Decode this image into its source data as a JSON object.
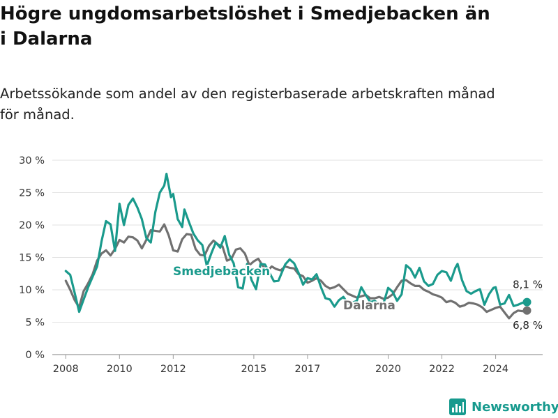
{
  "title_lines": [
    "Högre ungdomsarbetslöshet i Smedjebacken än",
    "i Dalarna"
  ],
  "subtitle_lines": [
    "Arbetssökande som andel av den registerbaserade arbetskraften månad",
    "för månad."
  ],
  "brand": {
    "name": "Newsworthy",
    "icon": "bar-chart-logo-icon",
    "color": "#179a8e"
  },
  "chart_data": {
    "type": "line",
    "xlabel": "",
    "ylabel": "",
    "x_ticks": [
      "2008",
      "2010",
      "2012",
      "2015",
      "2017",
      "2020",
      "2022",
      "2024"
    ],
    "y_ticks": [
      "0 %",
      "5 %",
      "10 %",
      "15 %",
      "20 %",
      "25 %",
      "30 %"
    ],
    "ylim": [
      0,
      30
    ],
    "xlim": [
      "2007-07",
      "2025-10"
    ],
    "grid": true,
    "legend": "none (series labelled directly on the lines)",
    "series": [
      {
        "name": "Smedjebacken",
        "color": "#1a9a8c",
        "end_label": "8,1 %",
        "points": [
          [
            "2008-01",
            12.9
          ],
          [
            "2008-03",
            12.3
          ],
          [
            "2008-05",
            9.5
          ],
          [
            "2008-07",
            6.6
          ],
          [
            "2008-09",
            8.5
          ],
          [
            "2008-11",
            10.4
          ],
          [
            "2009-01",
            12.0
          ],
          [
            "2009-03",
            13.6
          ],
          [
            "2009-05",
            17.5
          ],
          [
            "2009-07",
            20.6
          ],
          [
            "2009-09",
            20.1
          ],
          [
            "2009-11",
            16.0
          ],
          [
            "2010-01",
            23.3
          ],
          [
            "2010-03",
            20.0
          ],
          [
            "2010-05",
            23.1
          ],
          [
            "2010-07",
            24.1
          ],
          [
            "2010-09",
            22.7
          ],
          [
            "2010-11",
            20.9
          ],
          [
            "2011-01",
            18.0
          ],
          [
            "2011-03",
            17.3
          ],
          [
            "2011-05",
            22.0
          ],
          [
            "2011-07",
            25.0
          ],
          [
            "2011-09",
            26.1
          ],
          [
            "2011-10",
            27.9
          ],
          [
            "2011-12",
            24.3
          ],
          [
            "2012-01",
            24.8
          ],
          [
            "2012-03",
            20.9
          ],
          [
            "2012-05",
            19.7
          ],
          [
            "2012-06",
            22.4
          ],
          [
            "2012-08",
            20.5
          ],
          [
            "2012-10",
            18.7
          ],
          [
            "2012-12",
            17.6
          ],
          [
            "2013-02",
            16.9
          ],
          [
            "2013-04",
            13.7
          ],
          [
            "2013-06",
            15.6
          ],
          [
            "2013-08",
            17.3
          ],
          [
            "2013-10",
            16.5
          ],
          [
            "2013-12",
            18.3
          ],
          [
            "2014-02",
            15.4
          ],
          [
            "2014-04",
            14.1
          ],
          [
            "2014-06",
            10.4
          ],
          [
            "2014-08",
            10.2
          ],
          [
            "2014-10",
            14.0
          ],
          [
            "2014-12",
            11.5
          ],
          [
            "2015-02",
            10.1
          ],
          [
            "2015-04",
            14.0
          ],
          [
            "2015-06",
            13.9
          ],
          [
            "2015-08",
            12.6
          ],
          [
            "2015-10",
            11.3
          ],
          [
            "2015-12",
            11.4
          ],
          [
            "2016-03",
            13.9
          ],
          [
            "2016-05",
            14.7
          ],
          [
            "2016-07",
            14.1
          ],
          [
            "2016-09",
            12.6
          ],
          [
            "2016-11",
            10.8
          ],
          [
            "2017-01",
            11.8
          ],
          [
            "2017-03",
            11.6
          ],
          [
            "2017-05",
            12.4
          ],
          [
            "2017-07",
            10.4
          ],
          [
            "2017-09",
            8.7
          ],
          [
            "2017-11",
            8.5
          ],
          [
            "2018-01",
            7.4
          ],
          [
            "2018-03",
            8.4
          ],
          [
            "2018-05",
            8.9
          ],
          [
            "2018-07",
            7.9
          ],
          [
            "2018-09",
            8.0
          ],
          [
            "2018-11",
            8.3
          ],
          [
            "2019-01",
            10.4
          ],
          [
            "2019-03",
            9.2
          ],
          [
            "2019-05",
            8.1
          ],
          [
            "2019-07",
            8.3
          ],
          [
            "2019-09",
            7.8
          ],
          [
            "2019-11",
            8.0
          ],
          [
            "2020-01",
            10.3
          ],
          [
            "2020-03",
            9.7
          ],
          [
            "2020-05",
            8.3
          ],
          [
            "2020-07",
            9.3
          ],
          [
            "2020-09",
            13.8
          ],
          [
            "2020-11",
            13.2
          ],
          [
            "2021-01",
            11.9
          ],
          [
            "2021-03",
            13.4
          ],
          [
            "2021-05",
            11.3
          ],
          [
            "2021-07",
            10.6
          ],
          [
            "2021-09",
            10.9
          ],
          [
            "2021-11",
            12.3
          ],
          [
            "2022-01",
            12.9
          ],
          [
            "2022-03",
            12.7
          ],
          [
            "2022-05",
            11.4
          ],
          [
            "2022-07",
            13.4
          ],
          [
            "2022-08",
            14.0
          ],
          [
            "2022-10",
            11.5
          ],
          [
            "2022-12",
            9.8
          ],
          [
            "2023-02",
            9.4
          ],
          [
            "2023-04",
            9.8
          ],
          [
            "2023-06",
            10.1
          ],
          [
            "2023-08",
            7.7
          ],
          [
            "2023-10",
            9.3
          ],
          [
            "2023-12",
            10.3
          ],
          [
            "2024-01",
            10.4
          ],
          [
            "2024-03",
            7.7
          ],
          [
            "2024-05",
            7.9
          ],
          [
            "2024-07",
            9.2
          ],
          [
            "2024-09",
            7.5
          ],
          [
            "2024-11",
            7.7
          ],
          [
            "2025-01",
            8.0
          ],
          [
            "2025-03",
            8.1
          ]
        ]
      },
      {
        "name": "Dalarna",
        "color": "#707070",
        "end_label": "6,8 %",
        "points": [
          [
            "2008-01",
            11.4
          ],
          [
            "2008-03",
            10.0
          ],
          [
            "2008-05",
            8.4
          ],
          [
            "2008-07",
            7.3
          ],
          [
            "2008-09",
            9.8
          ],
          [
            "2008-11",
            11.0
          ],
          [
            "2009-01",
            12.4
          ],
          [
            "2009-03",
            14.5
          ],
          [
            "2009-05",
            15.6
          ],
          [
            "2009-07",
            16.1
          ],
          [
            "2009-09",
            15.3
          ],
          [
            "2009-11",
            16.3
          ],
          [
            "2010-01",
            17.7
          ],
          [
            "2010-03",
            17.3
          ],
          [
            "2010-05",
            18.2
          ],
          [
            "2010-07",
            18.1
          ],
          [
            "2010-09",
            17.6
          ],
          [
            "2010-11",
            16.4
          ],
          [
            "2011-01",
            17.7
          ],
          [
            "2011-03",
            19.2
          ],
          [
            "2011-05",
            19.1
          ],
          [
            "2011-07",
            19.0
          ],
          [
            "2011-09",
            20.1
          ],
          [
            "2011-11",
            18.4
          ],
          [
            "2012-01",
            16.1
          ],
          [
            "2012-03",
            15.9
          ],
          [
            "2012-05",
            17.8
          ],
          [
            "2012-07",
            18.6
          ],
          [
            "2012-09",
            18.5
          ],
          [
            "2012-11",
            16.3
          ],
          [
            "2013-01",
            15.4
          ],
          [
            "2013-03",
            15.3
          ],
          [
            "2013-05",
            16.8
          ],
          [
            "2013-07",
            17.6
          ],
          [
            "2013-09",
            17.0
          ],
          [
            "2013-11",
            16.7
          ],
          [
            "2014-01",
            14.5
          ],
          [
            "2014-03",
            14.8
          ],
          [
            "2014-05",
            16.2
          ],
          [
            "2014-07",
            16.4
          ],
          [
            "2014-09",
            15.6
          ],
          [
            "2014-11",
            13.8
          ],
          [
            "2015-01",
            14.4
          ],
          [
            "2015-03",
            14.8
          ],
          [
            "2015-05",
            13.7
          ],
          [
            "2015-07",
            12.9
          ],
          [
            "2015-09",
            13.6
          ],
          [
            "2015-11",
            13.2
          ],
          [
            "2016-01",
            13.0
          ],
          [
            "2016-03",
            13.6
          ],
          [
            "2016-05",
            13.4
          ],
          [
            "2016-07",
            13.3
          ],
          [
            "2016-09",
            12.4
          ],
          [
            "2016-11",
            12.1
          ],
          [
            "2017-01",
            11.1
          ],
          [
            "2017-03",
            11.4
          ],
          [
            "2017-05",
            11.8
          ],
          [
            "2017-07",
            11.4
          ],
          [
            "2017-09",
            10.6
          ],
          [
            "2017-11",
            10.2
          ],
          [
            "2018-01",
            10.4
          ],
          [
            "2018-03",
            10.8
          ],
          [
            "2018-05",
            10.1
          ],
          [
            "2018-07",
            9.4
          ],
          [
            "2018-09",
            9.1
          ],
          [
            "2018-11",
            8.8
          ],
          [
            "2019-01",
            9.0
          ],
          [
            "2019-03",
            9.2
          ],
          [
            "2019-05",
            8.7
          ],
          [
            "2019-07",
            8.7
          ],
          [
            "2019-09",
            8.9
          ],
          [
            "2019-11",
            8.6
          ],
          [
            "2020-01",
            8.8
          ],
          [
            "2020-03",
            9.3
          ],
          [
            "2020-05",
            10.4
          ],
          [
            "2020-07",
            11.4
          ],
          [
            "2020-09",
            11.5
          ],
          [
            "2020-11",
            11.0
          ],
          [
            "2021-01",
            10.6
          ],
          [
            "2021-03",
            10.6
          ],
          [
            "2021-05",
            10.0
          ],
          [
            "2021-07",
            9.7
          ],
          [
            "2021-09",
            9.3
          ],
          [
            "2021-11",
            9.1
          ],
          [
            "2022-01",
            8.8
          ],
          [
            "2022-03",
            8.1
          ],
          [
            "2022-05",
            8.3
          ],
          [
            "2022-07",
            8.0
          ],
          [
            "2022-09",
            7.4
          ],
          [
            "2022-11",
            7.6
          ],
          [
            "2023-01",
            8.0
          ],
          [
            "2023-03",
            7.9
          ],
          [
            "2023-05",
            7.7
          ],
          [
            "2023-07",
            7.3
          ],
          [
            "2023-09",
            6.6
          ],
          [
            "2023-11",
            6.9
          ],
          [
            "2024-01",
            7.2
          ],
          [
            "2024-03",
            7.4
          ],
          [
            "2024-05",
            6.5
          ],
          [
            "2024-07",
            5.6
          ],
          [
            "2024-09",
            6.4
          ],
          [
            "2024-11",
            6.8
          ],
          [
            "2025-01",
            6.7
          ],
          [
            "2025-03",
            6.8
          ]
        ]
      }
    ]
  }
}
